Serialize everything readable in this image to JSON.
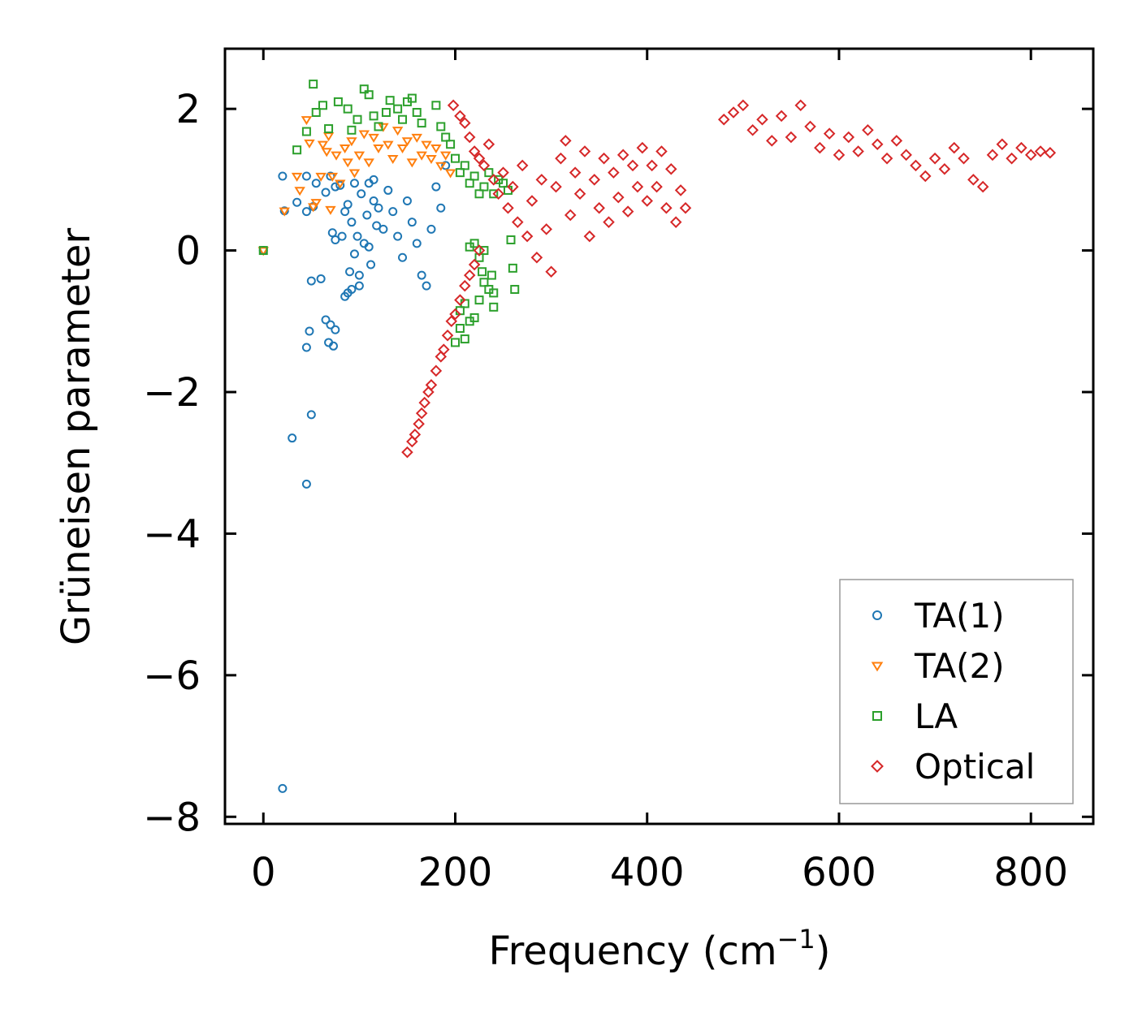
{
  "chart_data": {
    "type": "scatter",
    "title": "",
    "xlabel": "Frequency (cm",
    "xlabel_sup": "−1",
    "xlabel_suffix": ")",
    "ylabel": "Grüneisen parameter",
    "xlim": [
      -40,
      865
    ],
    "ylim": [
      -8.1,
      2.85
    ],
    "xticks": [
      0,
      200,
      400,
      600,
      800
    ],
    "xtick_labels": [
      "0",
      "200",
      "400",
      "600",
      "800"
    ],
    "yticks": [
      2,
      0,
      -2,
      -4,
      -6,
      -8
    ],
    "ytick_labels": [
      "2",
      "0",
      "−2",
      "−4",
      "−6",
      "−8"
    ],
    "legend_position": "lower-right",
    "series": [
      {
        "name": "TA(1)",
        "marker": "circle",
        "color": "#1f77b4",
        "points": [
          [
            0,
            0
          ],
          [
            20,
            -7.6
          ],
          [
            30,
            -2.65
          ],
          [
            45,
            -3.3
          ],
          [
            50,
            -2.32
          ],
          [
            45,
            -1.37
          ],
          [
            48,
            -1.14
          ],
          [
            65,
            -0.98
          ],
          [
            70,
            -1.05
          ],
          [
            75,
            -1.12
          ],
          [
            68,
            -1.3
          ],
          [
            73,
            -1.35
          ],
          [
            50,
            -0.43
          ],
          [
            60,
            -0.4
          ],
          [
            20,
            1.05
          ],
          [
            22,
            0.56
          ],
          [
            35,
            0.68
          ],
          [
            45,
            0.55
          ],
          [
            52,
            0.62
          ],
          [
            55,
            0.95
          ],
          [
            45,
            1.05
          ],
          [
            65,
            0.82
          ],
          [
            70,
            1.05
          ],
          [
            72,
            0.25
          ],
          [
            75,
            0.15
          ],
          [
            80,
            0.92
          ],
          [
            85,
            0.55
          ],
          [
            88,
            -0.6
          ],
          [
            90,
            -0.3
          ],
          [
            92,
            0.4
          ],
          [
            95,
            -0.05
          ],
          [
            98,
            0.2
          ],
          [
            100,
            -0.35
          ],
          [
            102,
            0.8
          ],
          [
            105,
            0.1
          ],
          [
            108,
            0.5
          ],
          [
            110,
            0.05
          ],
          [
            112,
            -0.2
          ],
          [
            115,
            0.7
          ],
          [
            118,
            0.35
          ],
          [
            95,
            0.95
          ],
          [
            85,
            -0.65
          ],
          [
            92,
            -0.55
          ],
          [
            82,
            0.2
          ],
          [
            100,
            -0.5
          ],
          [
            88,
            0.65
          ],
          [
            75,
            0.9
          ],
          [
            110,
            0.95
          ],
          [
            115,
            1.0
          ],
          [
            120,
            0.6
          ],
          [
            125,
            0.3
          ],
          [
            130,
            0.85
          ],
          [
            135,
            0.55
          ],
          [
            140,
            0.2
          ],
          [
            145,
            -0.1
          ],
          [
            150,
            0.7
          ],
          [
            155,
            0.4
          ],
          [
            160,
            0.1
          ],
          [
            165,
            -0.35
          ],
          [
            170,
            -0.5
          ],
          [
            175,
            0.3
          ],
          [
            180,
            0.9
          ],
          [
            185,
            0.6
          ],
          [
            190,
            1.2
          ]
        ]
      },
      {
        "name": "TA(2)",
        "marker": "triangle-down",
        "color": "#ff7f0e",
        "points": [
          [
            0,
            0
          ],
          [
            22,
            0.56
          ],
          [
            35,
            1.05
          ],
          [
            38,
            0.85
          ],
          [
            45,
            1.85
          ],
          [
            48,
            1.52
          ],
          [
            52,
            0.62
          ],
          [
            55,
            0.68
          ],
          [
            60,
            1.05
          ],
          [
            62,
            1.5
          ],
          [
            66,
            1.4
          ],
          [
            68,
            1.62
          ],
          [
            70,
            0.58
          ],
          [
            72,
            1.05
          ],
          [
            76,
            1.35
          ],
          [
            80,
            0.95
          ],
          [
            85,
            1.45
          ],
          [
            88,
            1.25
          ],
          [
            92,
            1.55
          ],
          [
            95,
            1.1
          ],
          [
            100,
            1.35
          ],
          [
            105,
            1.65
          ],
          [
            110,
            1.25
          ],
          [
            115,
            1.6
          ],
          [
            120,
            1.45
          ],
          [
            125,
            1.75
          ],
          [
            130,
            1.5
          ],
          [
            135,
            1.3
          ],
          [
            140,
            1.7
          ],
          [
            145,
            1.45
          ],
          [
            150,
            1.55
          ],
          [
            155,
            1.25
          ],
          [
            160,
            1.6
          ],
          [
            165,
            1.35
          ],
          [
            170,
            1.5
          ],
          [
            175,
            1.3
          ],
          [
            180,
            1.45
          ],
          [
            185,
            1.2
          ],
          [
            190,
            1.35
          ],
          [
            195,
            1.1
          ]
        ]
      },
      {
        "name": "LA",
        "marker": "square",
        "color": "#2ca02c",
        "points": [
          [
            0,
            0
          ],
          [
            35,
            1.42
          ],
          [
            45,
            1.68
          ],
          [
            52,
            2.35
          ],
          [
            55,
            1.95
          ],
          [
            62,
            2.05
          ],
          [
            68,
            1.72
          ],
          [
            78,
            2.1
          ],
          [
            88,
            2.0
          ],
          [
            92,
            1.7
          ],
          [
            98,
            1.85
          ],
          [
            105,
            2.28
          ],
          [
            110,
            2.2
          ],
          [
            115,
            1.9
          ],
          [
            120,
            1.75
          ],
          [
            128,
            1.95
          ],
          [
            132,
            2.12
          ],
          [
            140,
            2.0
          ],
          [
            145,
            1.85
          ],
          [
            150,
            2.1
          ],
          [
            155,
            2.15
          ],
          [
            160,
            1.95
          ],
          [
            165,
            1.8
          ],
          [
            180,
            2.05
          ],
          [
            185,
            1.75
          ],
          [
            190,
            1.6
          ],
          [
            195,
            1.5
          ],
          [
            200,
            1.3
          ],
          [
            205,
            1.1
          ],
          [
            210,
            1.2
          ],
          [
            215,
            0.95
          ],
          [
            220,
            1.05
          ],
          [
            225,
            0.8
          ],
          [
            230,
            0.9
          ],
          [
            235,
            1.1
          ],
          [
            240,
            0.8
          ],
          [
            245,
            1.0
          ],
          [
            250,
            0.95
          ],
          [
            255,
            0.85
          ],
          [
            258,
            0.15
          ],
          [
            260,
            -0.25
          ],
          [
            262,
            -0.55
          ],
          [
            240,
            -0.6
          ],
          [
            238,
            -0.35
          ],
          [
            230,
            -0.45
          ],
          [
            225,
            -0.7
          ],
          [
            220,
            -0.95
          ],
          [
            215,
            -1.0
          ],
          [
            210,
            -0.75
          ],
          [
            205,
            -1.1
          ],
          [
            200,
            -1.3
          ],
          [
            215,
            0.05
          ],
          [
            225,
            -0.1
          ],
          [
            230,
            0.0
          ],
          [
            220,
            0.1
          ],
          [
            235,
            -0.55
          ],
          [
            240,
            -0.8
          ],
          [
            205,
            -0.85
          ],
          [
            210,
            -1.25
          ],
          [
            228,
            -0.3
          ]
        ]
      },
      {
        "name": "Optical",
        "marker": "diamond",
        "color": "#d62728",
        "points": [
          [
            150,
            -2.85
          ],
          [
            155,
            -2.7
          ],
          [
            158,
            -2.6
          ],
          [
            162,
            -2.45
          ],
          [
            165,
            -2.3
          ],
          [
            168,
            -2.15
          ],
          [
            172,
            -2.0
          ],
          [
            175,
            -1.9
          ],
          [
            180,
            -1.7
          ],
          [
            185,
            -1.5
          ],
          [
            188,
            -1.4
          ],
          [
            192,
            -1.2
          ],
          [
            196,
            -1.0
          ],
          [
            200,
            -0.9
          ],
          [
            205,
            -0.7
          ],
          [
            210,
            -0.5
          ],
          [
            215,
            -0.35
          ],
          [
            220,
            -0.2
          ],
          [
            225,
            0.0
          ],
          [
            198,
            2.05
          ],
          [
            205,
            1.9
          ],
          [
            210,
            1.8
          ],
          [
            215,
            1.6
          ],
          [
            220,
            1.4
          ],
          [
            225,
            1.3
          ],
          [
            230,
            1.2
          ],
          [
            235,
            1.5
          ],
          [
            240,
            1.0
          ],
          [
            245,
            0.8
          ],
          [
            250,
            1.1
          ],
          [
            255,
            0.6
          ],
          [
            260,
            0.9
          ],
          [
            265,
            0.4
          ],
          [
            270,
            1.2
          ],
          [
            275,
            0.2
          ],
          [
            280,
            0.7
          ],
          [
            285,
            -0.1
          ],
          [
            290,
            1.0
          ],
          [
            295,
            0.3
          ],
          [
            300,
            -0.3
          ],
          [
            305,
            0.9
          ],
          [
            310,
            1.3
          ],
          [
            315,
            1.55
          ],
          [
            320,
            0.5
          ],
          [
            325,
            1.1
          ],
          [
            330,
            0.8
          ],
          [
            335,
            1.4
          ],
          [
            340,
            0.2
          ],
          [
            345,
            1.0
          ],
          [
            350,
            0.6
          ],
          [
            355,
            1.3
          ],
          [
            360,
            0.4
          ],
          [
            365,
            1.1
          ],
          [
            370,
            0.75
          ],
          [
            375,
            1.35
          ],
          [
            380,
            0.55
          ],
          [
            385,
            1.2
          ],
          [
            390,
            0.9
          ],
          [
            395,
            1.45
          ],
          [
            400,
            0.7
          ],
          [
            405,
            1.2
          ],
          [
            410,
            0.9
          ],
          [
            415,
            1.4
          ],
          [
            420,
            0.6
          ],
          [
            425,
            1.15
          ],
          [
            430,
            0.4
          ],
          [
            435,
            0.85
          ],
          [
            440,
            0.6
          ],
          [
            480,
            1.85
          ],
          [
            490,
            1.95
          ],
          [
            500,
            2.05
          ],
          [
            510,
            1.7
          ],
          [
            520,
            1.85
          ],
          [
            530,
            1.55
          ],
          [
            540,
            1.9
          ],
          [
            550,
            1.6
          ],
          [
            560,
            2.05
          ],
          [
            570,
            1.75
          ],
          [
            580,
            1.45
          ],
          [
            590,
            1.65
          ],
          [
            600,
            1.35
          ],
          [
            610,
            1.6
          ],
          [
            620,
            1.4
          ],
          [
            630,
            1.7
          ],
          [
            640,
            1.5
          ],
          [
            650,
            1.3
          ],
          [
            660,
            1.55
          ],
          [
            670,
            1.35
          ],
          [
            680,
            1.2
          ],
          [
            690,
            1.05
          ],
          [
            700,
            1.3
          ],
          [
            710,
            1.15
          ],
          [
            720,
            1.45
          ],
          [
            730,
            1.3
          ],
          [
            740,
            1.0
          ],
          [
            750,
            0.9
          ],
          [
            760,
            1.35
          ],
          [
            770,
            1.5
          ],
          [
            780,
            1.3
          ],
          [
            790,
            1.45
          ],
          [
            800,
            1.35
          ],
          [
            810,
            1.4
          ],
          [
            820,
            1.38
          ]
        ]
      }
    ]
  }
}
